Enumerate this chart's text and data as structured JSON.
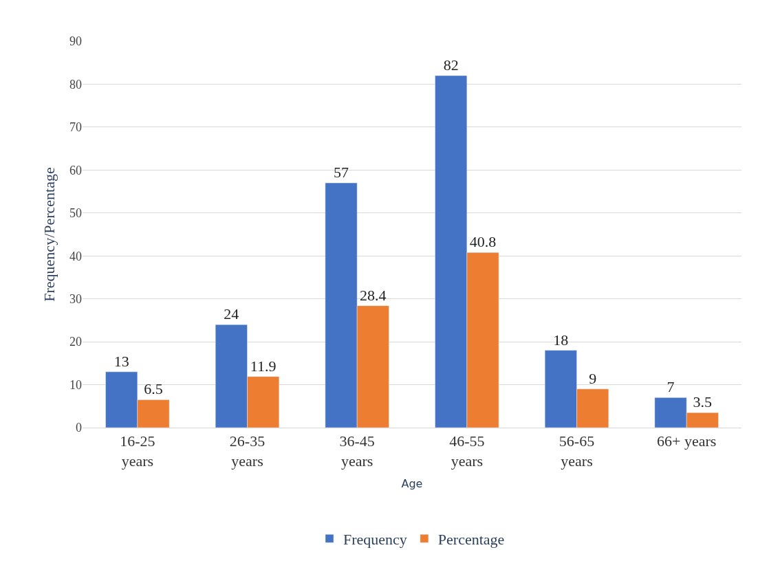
{
  "chart_data": {
    "type": "bar",
    "xlabel": "Age",
    "ylabel": "Frequency/Percentage",
    "categories": [
      "16-25 years",
      "26-35 years",
      "36-45 years",
      "46-55 years",
      "56-65 years",
      "66+ years"
    ],
    "series": [
      {
        "name": "Frequency",
        "color": "#4472c4",
        "values": [
          13,
          24,
          57,
          82,
          18,
          7
        ]
      },
      {
        "name": "Percentage",
        "color": "#ed7d31",
        "values": [
          6.5,
          11.9,
          28.4,
          40.8,
          9,
          3.5
        ]
      }
    ],
    "ylim": [
      0,
      90
    ],
    "yticks": [
      0,
      10,
      20,
      30,
      40,
      50,
      60,
      70,
      80,
      90
    ],
    "grid": "y",
    "legend": "bottom",
    "data_labels": true
  }
}
